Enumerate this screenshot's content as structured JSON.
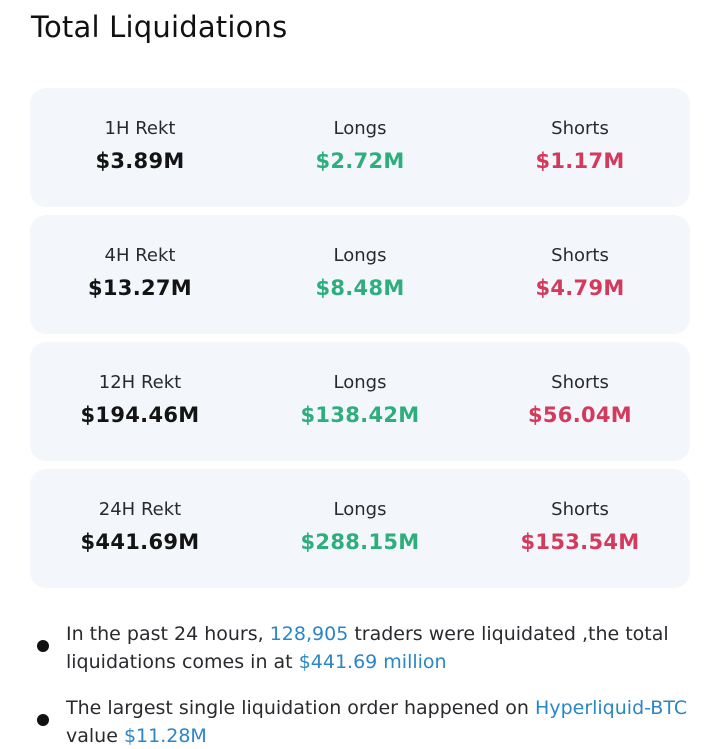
{
  "title": "Total Liquidations",
  "rows": [
    {
      "label": "1H Rekt",
      "total": "$3.89M",
      "longs_label": "Longs",
      "longs": "$2.72M",
      "shorts_label": "Shorts",
      "shorts": "$1.17M"
    },
    {
      "label": "4H Rekt",
      "total": "$13.27M",
      "longs_label": "Longs",
      "longs": "$8.48M",
      "shorts_label": "Shorts",
      "shorts": "$4.79M"
    },
    {
      "label": "12H Rekt",
      "total": "$194.46M",
      "longs_label": "Longs",
      "longs": "$138.42M",
      "shorts_label": "Shorts",
      "shorts": "$56.04M"
    },
    {
      "label": "24H Rekt",
      "total": "$441.69M",
      "longs_label": "Longs",
      "longs": "$288.15M",
      "shorts_label": "Shorts",
      "shorts": "$153.54M"
    }
  ],
  "notes": {
    "n1_a": "In the past 24 hours, ",
    "n1_traders": "128,905",
    "n1_b": " traders were liquidated ,the total liquidations comes in at ",
    "n1_amount": "$441.69 million",
    "n2_a": "The largest single liquidation order happened on ",
    "n2_pair": "Hyperliquid-BTC",
    "n2_b": " value ",
    "n2_amount": "$11.28M"
  },
  "colors": {
    "long": "#2fae7d",
    "short": "#d43a5c",
    "highlight": "#2a86c7",
    "card_bg": "#f3f7fb"
  }
}
